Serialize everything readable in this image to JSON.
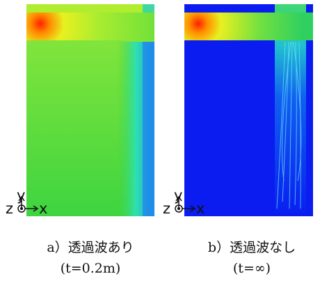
{
  "panels": [
    {
      "axis_labels": {
        "y": "y",
        "z": "z",
        "x": "x"
      },
      "caption": "a）透過波あり",
      "condition": "(t=0.2m)"
    },
    {
      "axis_labels": {
        "y": "y",
        "z": "z",
        "x": "x"
      },
      "caption": "b）透過波なし",
      "condition": "(t=∞)"
    }
  ]
}
